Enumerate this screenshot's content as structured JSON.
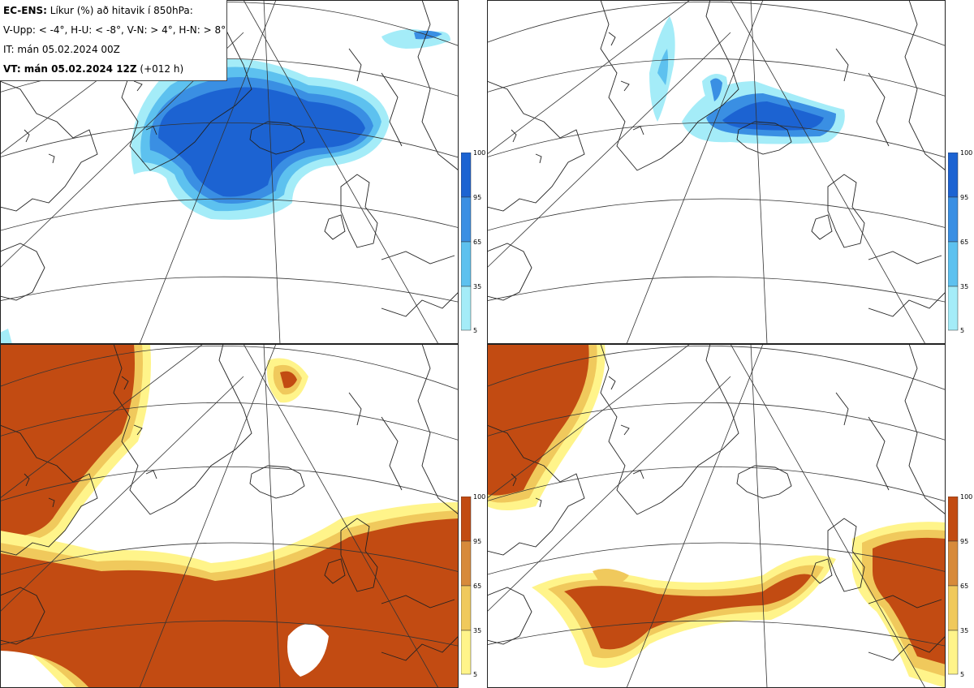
{
  "header": {
    "title_bold": "EC-ENS:",
    "title_rest": " Líkur (%) að hitavik í 850hPa:",
    "thresholds": "V-Upp: < -4°, H-U: < -8°, V-N: > 4°, H-N: > 8°",
    "initial_time": "IT: mán 05.02.2024 00Z",
    "valid_bold": "VT: mán 05.02.2024 12Z",
    "valid_rest": " (+012 h)"
  },
  "colorbar_cold": {
    "ticks": [
      "100",
      "95",
      "65",
      "35",
      "5"
    ],
    "colors": [
      "#1c63d2",
      "#3a8fe3",
      "#5dc1ef",
      "#a4ecf8"
    ]
  },
  "colorbar_warm": {
    "ticks": [
      "100",
      "95",
      "65",
      "35",
      "5"
    ],
    "colors": [
      "#c24b12",
      "#d78a3a",
      "#f0c95c",
      "#fff48a"
    ]
  }
}
